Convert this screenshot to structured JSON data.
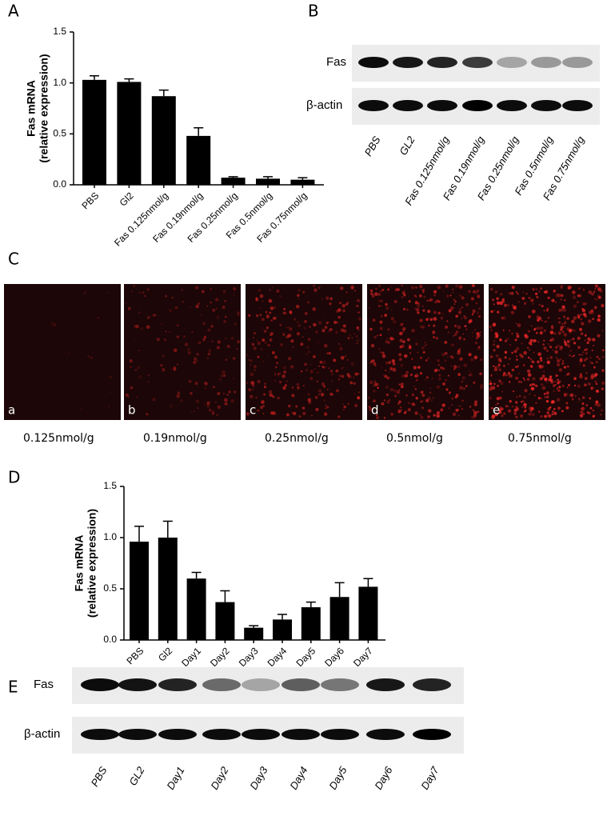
{
  "chart_data": [
    {
      "type": "bar",
      "panel": "A",
      "ylabel": [
        "Fas mRNA",
        "(relative expression)"
      ],
      "categories": [
        "PBS",
        "Gl2",
        "Fas 0.125nmol/g",
        "Fas 0.19nmol/g",
        "Fas 0.25nmol/g",
        "Fas 0.5nmol/g",
        "Fas 0.75nmol/g"
      ],
      "values": [
        1.03,
        1.01,
        0.87,
        0.48,
        0.07,
        0.06,
        0.05
      ],
      "errors": [
        0.04,
        0.03,
        0.06,
        0.08,
        0.01,
        0.02,
        0.02
      ],
      "color": "#000000",
      "ylim": [
        0,
        1.5
      ],
      "yticks": [
        {
          "value": 0,
          "label": "0.0"
        },
        0.5,
        {
          "value": 1,
          "label": "1.0"
        },
        1.5
      ]
    },
    {
      "type": "bar",
      "panel": "D",
      "ylabel": [
        "Fas mRNA",
        "(relative expression)"
      ],
      "categories": [
        "PBS",
        "Gl2",
        "Day1",
        "Day2",
        "Day3",
        "Day4",
        "Day5",
        "Day6",
        "Day7"
      ],
      "values": [
        0.96,
        1.0,
        0.6,
        0.37,
        0.12,
        0.2,
        0.32,
        0.42,
        0.52
      ],
      "errors": [
        0.15,
        0.16,
        0.06,
        0.11,
        0.02,
        0.05,
        0.05,
        0.14,
        0.08
      ],
      "color": "#000000",
      "ylim": [
        0,
        1.5
      ],
      "yticks": [
        {
          "value": 0,
          "label": "0.0"
        },
        0.5,
        {
          "value": 1,
          "label": "1.0"
        },
        1.5
      ]
    }
  ],
  "blot_b": {
    "panel": "B",
    "rows": [
      "Fas",
      "β-actin"
    ],
    "lanes": [
      "PBS",
      "GL2",
      "Fas 0.125nmol/g",
      "Fas 0.19nmol/g",
      "Fas 0.25nmol/g",
      "Fas 0.5nmol/g",
      "Fas 0.75nmol/g"
    ]
  },
  "images_c": {
    "panel": "C",
    "letters": [
      "a",
      "b",
      "c",
      "d",
      "e"
    ],
    "labels": [
      "0.125nmol/g",
      "0.19nmol/g",
      "0.25nmol/g",
      "0.5nmol/g",
      "0.75nmol/g"
    ]
  },
  "blot_e": {
    "panel": "E",
    "rows": [
      "Fas",
      "β-actin"
    ],
    "lanes": [
      "PBS",
      "GL2",
      "Day1",
      "Day2",
      "Day3",
      "Day4",
      "Day5",
      "Day6",
      "Day7"
    ]
  }
}
